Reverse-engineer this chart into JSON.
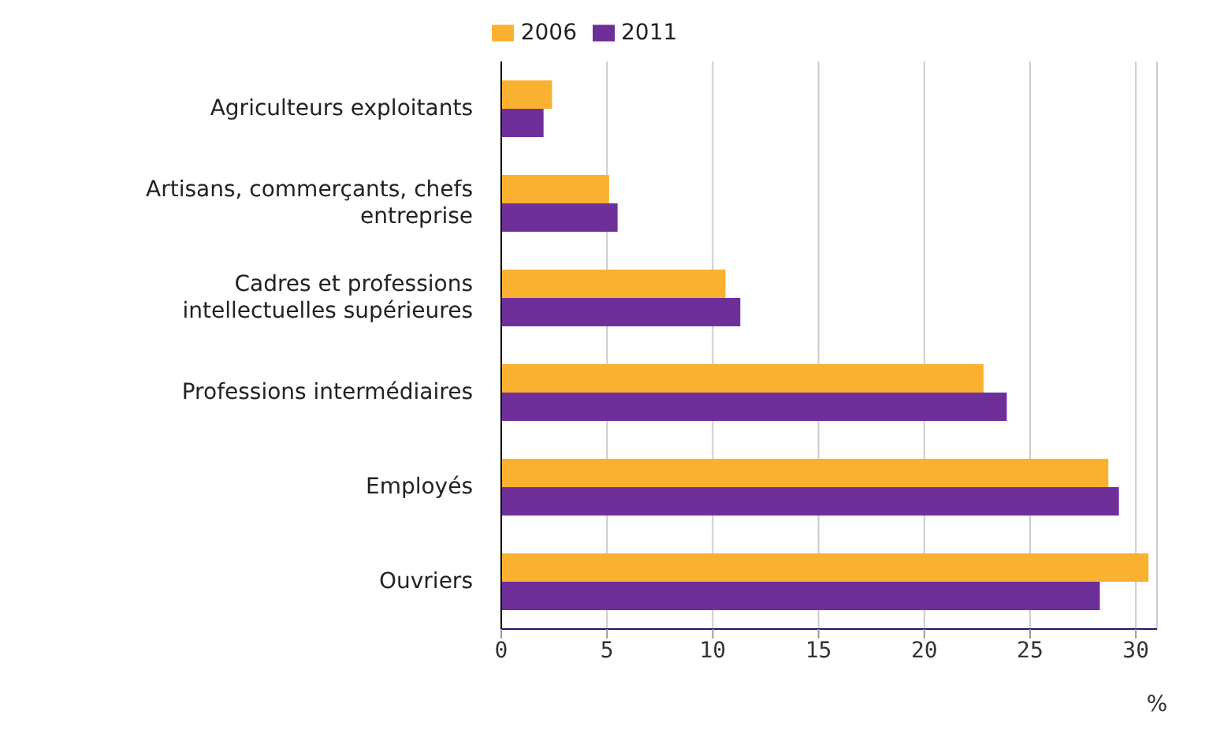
{
  "chart_data": {
    "type": "bar",
    "orientation": "horizontal",
    "xlabel": "%",
    "categories": [
      "Agriculteurs exploitants",
      "Artisans, commerçants, chefs entreprise",
      "Cadres et professions intellectuelles supérieures",
      "Professions intermédiaires",
      "Employés",
      "Ouvriers"
    ],
    "series": [
      {
        "name": "2006",
        "color": "#fbb130",
        "values": [
          2.4,
          5.1,
          10.6,
          22.8,
          28.7,
          30.6
        ]
      },
      {
        "name": "2011",
        "color": "#6f2f9b",
        "values": [
          2.0,
          5.5,
          11.3,
          23.9,
          29.2,
          28.3
        ]
      }
    ],
    "xlim": [
      0,
      31
    ],
    "xticks": [
      0,
      5,
      10,
      15,
      20,
      25,
      30
    ],
    "grid": "x",
    "legend": "top"
  }
}
